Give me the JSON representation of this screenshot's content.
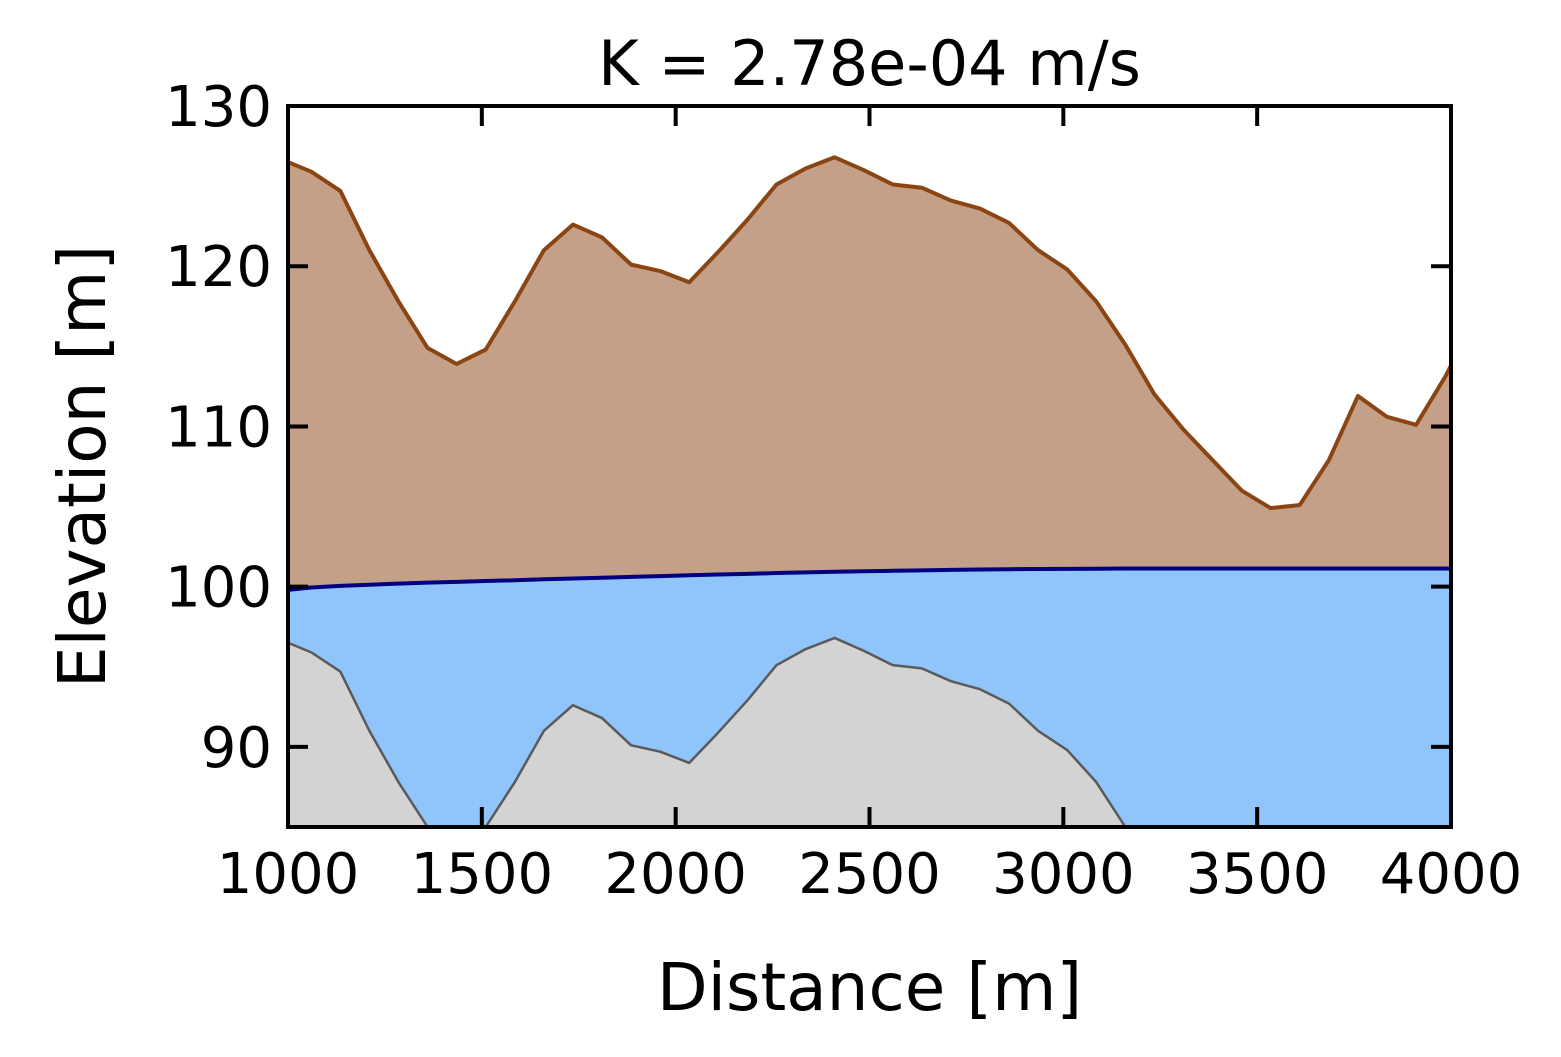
{
  "chart_data": {
    "type": "area",
    "title": "K = 2.78e-04 m/s",
    "xlabel": "Distance [m]",
    "ylabel": "Elevation [m]",
    "xlim": [
      1000,
      4000
    ],
    "ylim": [
      85,
      130
    ],
    "xticks": [
      "1000",
      "1500",
      "2000",
      "2500",
      "3000",
      "3500",
      "4000"
    ],
    "yticks": [
      "90",
      "100",
      "110",
      "120",
      "130"
    ],
    "grid": false,
    "x": [
      1000,
      1060,
      1135,
      1210,
      1285,
      1360,
      1435,
      1510,
      1585,
      1660,
      1735,
      1810,
      1885,
      1960,
      2035,
      2110,
      2185,
      2260,
      2335,
      2410,
      2485,
      2560,
      2635,
      2710,
      2785,
      2860,
      2935,
      3010,
      3085,
      3160,
      3235,
      3310,
      3385,
      3460,
      3535,
      3610,
      3685,
      3760,
      3835,
      3910,
      3985,
      4000
    ],
    "series": [
      {
        "values": [
          126.5,
          125.9,
          124.7,
          121.0,
          117.8,
          114.9,
          113.9,
          114.8,
          117.8,
          121.0,
          122.6,
          121.8,
          120.1,
          119.7,
          119.0,
          120.9,
          122.9,
          125.1,
          126.1,
          126.8,
          126.0,
          125.1,
          124.9,
          124.1,
          123.6,
          122.7,
          121.0,
          119.8,
          117.8,
          115.1,
          112.0,
          109.8,
          107.9,
          106.0,
          104.9,
          105.1,
          107.9,
          111.9,
          110.6,
          110.1,
          113.1,
          113.8
        ],
        "color": "#8b4513",
        "fill": "#c4a088"
      },
      {
        "values": [
          99.8,
          99.95,
          100.05,
          100.12,
          100.19,
          100.25,
          100.3,
          100.35,
          100.4,
          100.46,
          100.51,
          100.56,
          100.61,
          100.66,
          100.71,
          100.76,
          100.8,
          100.85,
          100.89,
          100.93,
          100.96,
          100.99,
          101.02,
          101.05,
          101.07,
          101.09,
          101.1,
          101.11,
          101.12,
          101.13,
          101.13,
          101.13,
          101.13,
          101.13,
          101.13,
          101.13,
          101.13,
          101.13,
          101.13,
          101.13,
          101.13,
          101.13
        ],
        "color": "#000080",
        "fill": "#90c5fc"
      },
      {
        "values": [
          96.5,
          95.9,
          94.7,
          91.0,
          87.8,
          85.0,
          85.0,
          85.0,
          87.8,
          91.0,
          92.6,
          91.8,
          90.1,
          89.7,
          89.0,
          90.9,
          92.9,
          95.1,
          96.1,
          96.8,
          96.0,
          95.1,
          94.9,
          94.1,
          93.6,
          92.7,
          91.0,
          89.8,
          87.8,
          85.0,
          85.0,
          85.0,
          85.0,
          85.0,
          85.0,
          85.0,
          85.0,
          85.0,
          85.0,
          85.0,
          85.0,
          85.0
        ],
        "color": "#5a5a5a",
        "fill": "#d3d3d3"
      }
    ]
  }
}
